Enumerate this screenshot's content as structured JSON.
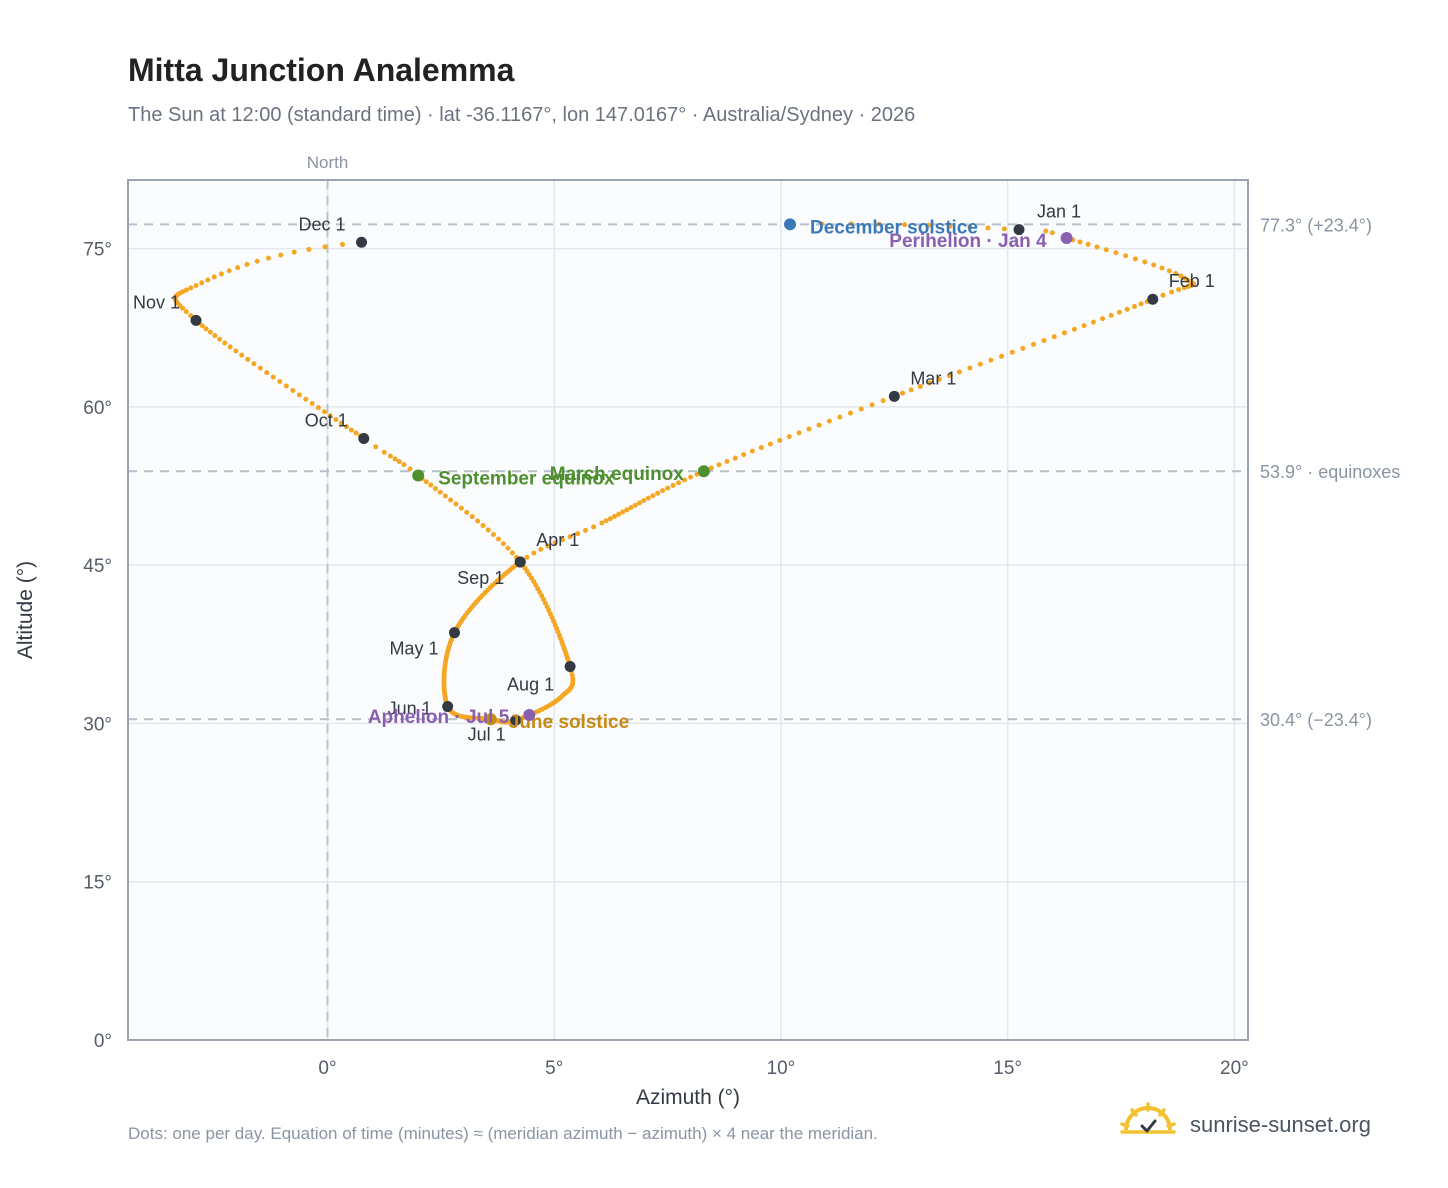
{
  "title": "Mitta Junction Analemma",
  "subtitle": "The Sun at 12:00 (standard time) · lat -36.1167°, lon 147.0167° · Australia/Sydney · 2026",
  "footnote": "Dots: one per day. Equation of time (minutes) ≈ (meridian azimuth − azimuth) × 4 near the meridian.",
  "brand": {
    "text": "sunrise-sunset.org",
    "icon": "sun-logo-icon"
  },
  "colors": {
    "curve": "#f5a623",
    "marker": "#333a44",
    "december": "#3a78b8",
    "perihelion": "#8a5fb0",
    "equinox": "#4f8f2f",
    "june": "#c98a12",
    "plot_bg": "#fafcfe",
    "grid": "#e3e8ee",
    "frame": "#9aa3ae"
  },
  "chart_data": {
    "type": "scatter",
    "title": "Mitta Junction Analemma",
    "xlabel": "Azimuth (°)",
    "ylabel": "Altitude (°)",
    "xlim": [
      -4.4,
      20.3
    ],
    "ylim": [
      0,
      81.5
    ],
    "xticks": [
      0,
      5,
      10,
      15,
      20
    ],
    "xtick_labels": [
      "0°",
      "5°",
      "10°",
      "15°",
      "20°"
    ],
    "yticks": [
      0,
      15,
      30,
      45,
      60,
      75
    ],
    "ytick_labels": [
      "0°",
      "15°",
      "30°",
      "45°",
      "60°",
      "75°"
    ],
    "grid": true,
    "north_label": "North",
    "reference_lines": [
      {
        "y": 77.3,
        "label": "77.3° (+23.4°)"
      },
      {
        "y": 53.9,
        "label": "53.9° · equinoxes"
      },
      {
        "y": 30.4,
        "label": "30.4° (−23.4°)"
      }
    ],
    "month_markers": [
      {
        "label": "Jan 1",
        "x": 15.25,
        "y": 76.8
      },
      {
        "label": "Feb 1",
        "x": 18.2,
        "y": 70.2
      },
      {
        "label": "Mar 1",
        "x": 12.5,
        "y": 61.0
      },
      {
        "label": "Apr 1",
        "x": 4.25,
        "y": 45.3
      },
      {
        "label": "May 1",
        "x": 2.8,
        "y": 38.6
      },
      {
        "label": "Jun 1",
        "x": 2.65,
        "y": 31.6
      },
      {
        "label": "Jul 1",
        "x": 4.15,
        "y": 30.3
      },
      {
        "label": "Aug 1",
        "x": 5.35,
        "y": 35.4
      },
      {
        "label": "Sep 1",
        "x": 4.25,
        "y": 45.3
      },
      {
        "label": "Oct 1",
        "x": 0.8,
        "y": 57.0
      },
      {
        "label": "Nov 1",
        "x": -2.9,
        "y": 68.2
      },
      {
        "label": "Dec 1",
        "x": 0.75,
        "y": 75.6
      }
    ],
    "events": [
      {
        "label": "December solstice",
        "x": 10.2,
        "y": 77.3,
        "color": "#3a78b8"
      },
      {
        "label": "Perihelion · Jan 4",
        "x": 16.3,
        "y": 76.0,
        "color": "#8a5fb0"
      },
      {
        "label": "March equinox",
        "x": 8.3,
        "y": 53.9,
        "color": "#4f8f2f"
      },
      {
        "label": "September equinox",
        "x": 2.0,
        "y": 53.5,
        "color": "#4f8f2f"
      },
      {
        "label": "June solstice",
        "x": 3.6,
        "y": 30.4,
        "color": "#c98a12"
      },
      {
        "label": "Aphelion · Jul 5",
        "x": 4.45,
        "y": 30.8,
        "color": "#8a5fb0"
      }
    ],
    "curve_path": {
      "x": [
        10.2,
        15.25,
        16.3,
        18.9,
        18.2,
        12.5,
        8.3,
        6.05,
        4.25,
        2.8,
        2.65,
        3.6,
        4.15,
        5.15,
        5.35,
        4.25,
        2.0,
        0.8,
        -2.9,
        -2.9,
        0.75,
        10.2
      ],
      "y": [
        77.3,
        76.8,
        76.0,
        72.2,
        70.2,
        61.0,
        53.9,
        49.0,
        45.3,
        38.6,
        31.6,
        30.4,
        30.3,
        32.5,
        35.4,
        45.3,
        53.5,
        57.0,
        68.2,
        71.5,
        75.6,
        77.3
      ],
      "days": [
        0,
        10,
        13,
        28,
        41,
        69,
        89,
        110,
        121,
        151,
        182,
        202,
        212,
        230,
        243,
        275,
        296,
        304,
        335,
        350,
        365,
        386
      ]
    }
  }
}
